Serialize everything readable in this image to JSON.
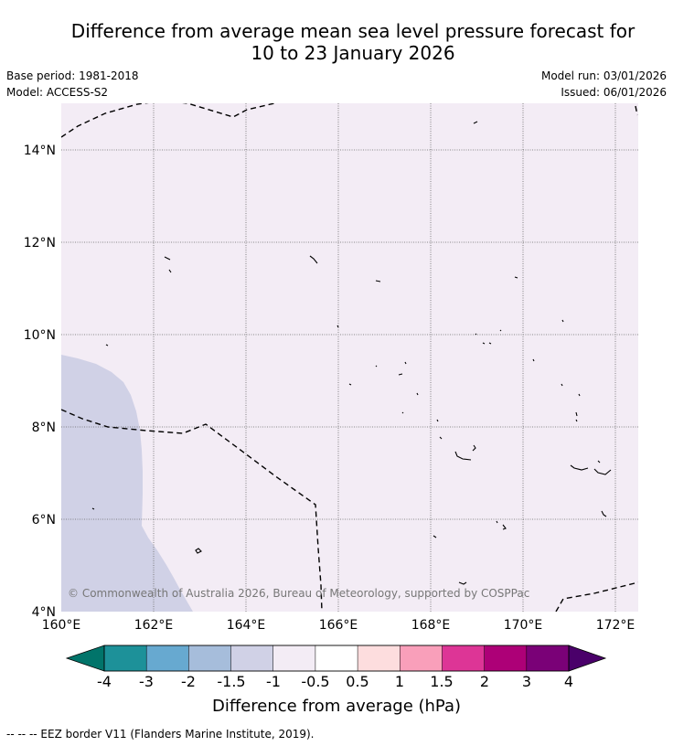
{
  "title": {
    "line1": "Difference from average mean sea level pressure forecast for",
    "line2": "10 to 23 January 2026"
  },
  "meta": {
    "base_period": "Base period: 1981-2018",
    "model": "Model: ACCESS-S2",
    "model_run": "Model run: 03/01/2026",
    "issued": "Issued: 06/01/2026"
  },
  "map": {
    "lat_labels": [
      "14°N",
      "12°N",
      "10°N",
      "8°N",
      "6°N",
      "4°N"
    ],
    "lon_labels": [
      "160°E",
      "162°E",
      "164°E",
      "166°E",
      "168°E",
      "170°E",
      "172°E"
    ],
    "copyright": "© Commonwealth of Australia 2026, Bureau of Meteorology, supported by COSPPac",
    "colors": {
      "background_class": "#f3ecf5",
      "minus_1_5_to_minus_1": "#d0d1e6",
      "eez_border": "#000000"
    }
  },
  "colorbar": {
    "tick_labels": [
      "-4",
      "-3",
      "-2",
      "-1.5",
      "-1",
      "-0.5",
      "0.5",
      "1",
      "1.5",
      "2",
      "3",
      "4"
    ],
    "colors": [
      "#01746a",
      "#1d9199",
      "#67a9d0",
      "#a6bddb",
      "#d0d1e6",
      "#f3ecf5",
      "#ffffff",
      "#fdddde",
      "#f99fba",
      "#dd3596",
      "#ad0077",
      "#7a0177",
      "#4a006a"
    ],
    "label": "Difference from average (hPa)"
  },
  "footer": {
    "legend": "--  --  -- EEZ border V11 (Flanders Marine Institute, 2019)."
  }
}
